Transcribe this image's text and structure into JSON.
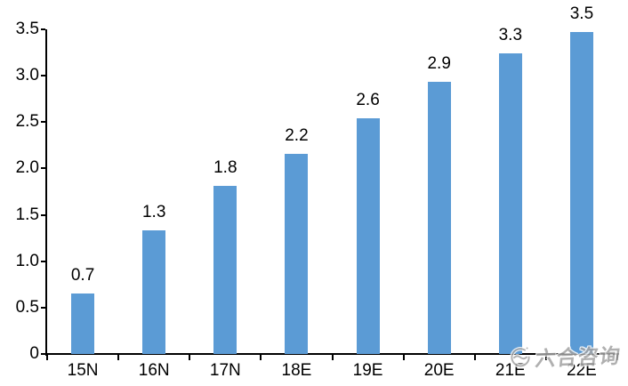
{
  "chart_data": {
    "type": "bar",
    "title": "",
    "xlabel": "",
    "ylabel": "",
    "categories": [
      "15N",
      "16N",
      "17N",
      "18E",
      "19E",
      "20E",
      "21E",
      "22E"
    ],
    "values": [
      0.7,
      1.3,
      1.8,
      2.2,
      2.6,
      2.9,
      3.3,
      3.5
    ],
    "data_labels": [
      "0.7",
      "1.3",
      "1.8",
      "2.2",
      "2.6",
      "2.9",
      "3.3",
      "3.5"
    ],
    "bar_heights_rendered": [
      0.65,
      1.33,
      1.81,
      2.16,
      2.54,
      2.93,
      3.24,
      3.47
    ],
    "ylim": [
      0,
      3.5
    ],
    "yticks": [
      0,
      0.5,
      1.0,
      1.5,
      2.0,
      2.5,
      3.0,
      3.5
    ],
    "ytick_labels": [
      "0",
      "0.5",
      "1.0",
      "1.5",
      "2.0",
      "2.5",
      "3.0",
      "3.5"
    ],
    "grid": false,
    "legend": false,
    "bar_color": "#5B9BD5",
    "axis_color": "#000000",
    "label_color": "#000000"
  },
  "watermark": {
    "text": "六合咨询",
    "logo": "swirl-logo-icon",
    "color": "#a3a3a3"
  }
}
